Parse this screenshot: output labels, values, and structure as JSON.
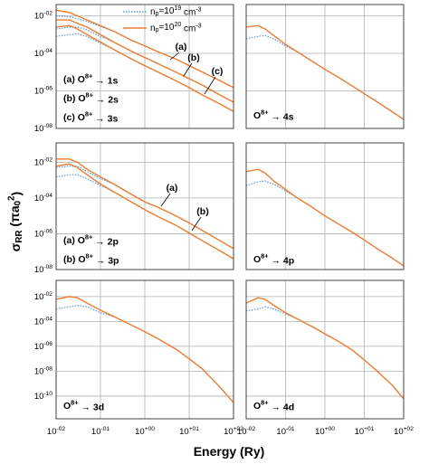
{
  "figure": {
    "x_label": "Energy (Ry)",
    "y_label": "σRR (πa02)"
  },
  "chart_data": [
    {
      "type": "line",
      "xscale": "log",
      "yscale": "log",
      "grid": true,
      "legend": "top",
      "xlim": [
        0.01,
        100
      ],
      "ylim": [
        1e-08,
        0.04
      ],
      "xticks": [
        0.01,
        0.1,
        1,
        10,
        100
      ],
      "yticks": [
        {
          "value": 0.01,
          "label": "10-02"
        },
        {
          "value": 0.0001,
          "label": "10-04"
        },
        {
          "value": 1e-06,
          "label": "10-06"
        },
        {
          "value": 1e-08,
          "label": "10-08"
        }
      ],
      "x": [
        0.01,
        0.02,
        0.03,
        0.05,
        0.1,
        0.2,
        0.5,
        1,
        2,
        5,
        10,
        20,
        50,
        100
      ],
      "series": [
        {
          "name": "np=1019 cm-3",
          "color": "#5b9bd5",
          "line_style": "dotted",
          "values": [
            0.01,
            0.009,
            0.007,
            0.005,
            0.0027,
            0.0015,
            0.0005,
            0.00025,
            0.00012,
            5e-05,
            2.2e-05,
            1e-05,
            3.5e-06,
            1.5e-06
          ]
        },
        {
          "name": "np=1020 cm-3",
          "color": "#ed7d31",
          "line_style": "solid",
          "values": [
            0.02,
            0.015,
            0.01,
            0.006,
            0.003,
            0.0015,
            0.0005,
            0.00025,
            0.00012,
            5e-05,
            2.2e-05,
            1e-05,
            3.5e-06,
            1.5e-06
          ]
        },
        {
          "color": "#5b9bd5",
          "line_style": "dotted",
          "values": [
            0.002,
            0.0025,
            0.0025,
            0.0018,
            0.0008,
            0.0004,
            0.00013,
            6e-05,
            2.8e-05,
            1e-05,
            4.5e-06,
            2e-06,
            6e-07,
            2.5e-07
          ]
        },
        {
          "color": "#ed7d31",
          "line_style": "solid",
          "values": [
            0.006,
            0.006,
            0.004,
            0.0025,
            0.001,
            0.0004,
            0.00013,
            6e-05,
            2.8e-05,
            1e-05,
            4.5e-06,
            2e-06,
            6e-07,
            2.5e-07
          ]
        },
        {
          "color": "#5b9bd5",
          "line_style": "dotted",
          "values": [
            0.0008,
            0.001,
            0.0011,
            0.0008,
            0.00035,
            0.00016,
            5e-05,
            2.2e-05,
            1e-05,
            3.5e-06,
            1.5e-06,
            6e-07,
            2e-07,
            8e-08
          ]
        },
        {
          "color": "#ed7d31",
          "line_style": "solid",
          "values": [
            0.0025,
            0.003,
            0.002,
            0.001,
            0.0004,
            0.00016,
            5e-05,
            2.2e-05,
            1e-05,
            3.5e-06,
            1.5e-06,
            6e-07,
            2e-07,
            8e-08
          ]
        }
      ],
      "annotations": [
        "(a) O8+ → 1s",
        "(b) O8+ → 2s",
        "(c) O8+ → 3s"
      ],
      "curve_labels": [
        "(a)",
        "(b)",
        "(c)"
      ]
    },
    {
      "type": "line",
      "xscale": "log",
      "yscale": "log",
      "grid": true,
      "xlim": [
        0.01,
        100
      ],
      "ylim": [
        1e-08,
        0.04
      ],
      "xticks": [
        0.01,
        0.1,
        1,
        10,
        100
      ],
      "yticks": [
        0.01,
        0.0001,
        1e-06,
        1e-08
      ],
      "x": [
        0.01,
        0.02,
        0.03,
        0.05,
        0.1,
        0.2,
        0.5,
        1,
        2,
        5,
        10,
        20,
        50,
        100
      ],
      "series": [
        {
          "color": "#5b9bd5",
          "line_style": "dotted",
          "values": [
            0.0006,
            0.0008,
            0.0009,
            0.0006,
            0.00025,
            0.00012,
            3.5e-05,
            1.4e-05,
            6e-06,
            1.8e-06,
            7e-07,
            2.8e-07,
            8e-08,
            3e-08
          ]
        },
        {
          "color": "#ed7d31",
          "line_style": "solid",
          "values": [
            0.0025,
            0.003,
            0.002,
            0.0009,
            0.0003,
            0.00012,
            3.5e-05,
            1.4e-05,
            6e-06,
            1.8e-06,
            7e-07,
            2.8e-07,
            8e-08,
            3e-08
          ]
        }
      ],
      "annotations": [
        "O8+ → 4s"
      ]
    },
    {
      "type": "line",
      "xscale": "log",
      "yscale": "log",
      "grid": true,
      "xlim": [
        0.01,
        100
      ],
      "ylim": [
        1e-08,
        0.12
      ],
      "xticks": [
        0.01,
        0.1,
        1,
        10,
        100
      ],
      "yticks": [
        {
          "value": 0.01,
          "label": "10-02"
        },
        {
          "value": 0.0001,
          "label": "10-04"
        },
        {
          "value": 1e-06,
          "label": "10-06"
        },
        {
          "value": 1e-08,
          "label": "10-08"
        }
      ],
      "x": [
        0.01,
        0.02,
        0.03,
        0.05,
        0.1,
        0.2,
        0.5,
        1,
        2,
        5,
        10,
        20,
        50,
        100
      ],
      "series": [
        {
          "color": "#5b9bd5",
          "line_style": "dotted",
          "values": [
            0.005,
            0.006,
            0.006,
            0.003,
            0.0012,
            0.0006,
            0.00016,
            6e-05,
            3e-05,
            1e-05,
            4e-06,
            1.5e-06,
            4e-07,
            1.5e-07
          ]
        },
        {
          "color": "#ed7d31",
          "line_style": "solid",
          "values": [
            0.015,
            0.015,
            0.01,
            0.004,
            0.0015,
            0.0006,
            0.00016,
            6e-05,
            3e-05,
            1e-05,
            4e-06,
            1.5e-06,
            4e-07,
            1.5e-07
          ]
        },
        {
          "color": "#5b9bd5",
          "line_style": "dotted",
          "values": [
            0.0015,
            0.002,
            0.002,
            0.0012,
            0.0005,
            0.00022,
            6e-05,
            2.2e-05,
            9e-06,
            3e-06,
            1.1e-06,
            4e-07,
            1.1e-07,
            4e-08
          ]
        },
        {
          "color": "#ed7d31",
          "line_style": "solid",
          "values": [
            0.006,
            0.008,
            0.005,
            0.002,
            0.0006,
            0.00022,
            6e-05,
            2.2e-05,
            9e-06,
            3e-06,
            1.1e-06,
            4e-07,
            1.1e-07,
            4e-08
          ]
        }
      ],
      "annotations": [
        "(a) O8+ → 2p",
        "(b) O8+ → 3p"
      ],
      "curve_labels": [
        "(a)",
        "(b)"
      ]
    },
    {
      "type": "line",
      "xscale": "log",
      "yscale": "log",
      "grid": true,
      "xlim": [
        0.01,
        100
      ],
      "ylim": [
        1e-08,
        0.12
      ],
      "xticks": [
        0.01,
        0.1,
        1,
        10,
        100
      ],
      "yticks": [
        0.01,
        0.0001,
        1e-06,
        1e-08
      ],
      "x": [
        0.01,
        0.02,
        0.03,
        0.05,
        0.1,
        0.2,
        0.5,
        1,
        2,
        5,
        10,
        20,
        50,
        100
      ],
      "series": [
        {
          "color": "#5b9bd5",
          "line_style": "dotted",
          "values": [
            0.0005,
            0.0008,
            0.0009,
            0.0006,
            0.00025,
            0.0001,
            2.8e-05,
            1e-05,
            4e-06,
            1.2e-06,
            4.5e-07,
            1.6e-07,
            4.5e-08,
            1.6e-08
          ]
        },
        {
          "color": "#ed7d31",
          "line_style": "solid",
          "values": [
            0.003,
            0.004,
            0.0025,
            0.0009,
            0.0003,
            0.0001,
            2.8e-05,
            1e-05,
            4e-06,
            1.2e-06,
            4.5e-07,
            1.6e-07,
            4.5e-08,
            1.6e-08
          ]
        }
      ],
      "annotations": [
        "O8+ → 4p"
      ]
    },
    {
      "type": "line",
      "xscale": "log",
      "yscale": "log",
      "grid": true,
      "xlim": [
        0.01,
        100
      ],
      "ylim": [
        1.5e-12,
        0.2
      ],
      "xticks": [
        {
          "value": 0.01,
          "label": "10-02"
        },
        {
          "value": 0.1,
          "label": "10-01"
        },
        {
          "value": 1,
          "label": "10+00"
        },
        {
          "value": 10,
          "label": "10+01"
        },
        {
          "value": 100,
          "label": "10+02"
        }
      ],
      "yticks": [
        {
          "value": 0.01,
          "label": "10-02"
        },
        {
          "value": 0.0001,
          "label": "10-04"
        },
        {
          "value": 1e-06,
          "label": "10-06"
        },
        {
          "value": 1e-08,
          "label": "10-08"
        },
        {
          "value": 1e-10,
          "label": "10-10"
        }
      ],
      "x": [
        0.01,
        0.02,
        0.03,
        0.05,
        0.1,
        0.2,
        0.5,
        1,
        2,
        5,
        10,
        20,
        50,
        100
      ],
      "series": [
        {
          "color": "#5b9bd5",
          "line_style": "dotted",
          "values": [
            0.001,
            0.0015,
            0.002,
            0.0015,
            0.0005,
            0.00025,
            5e-05,
            1.5e-05,
            4e-06,
            6e-07,
            1e-07,
            1.5e-08,
            5e-10,
            3e-11
          ]
        },
        {
          "color": "#ed7d31",
          "line_style": "solid",
          "values": [
            0.006,
            0.01,
            0.008,
            0.003,
            0.0008,
            0.00025,
            5e-05,
            1.5e-05,
            4e-06,
            6e-07,
            1e-07,
            1.5e-08,
            5e-10,
            3e-11
          ]
        }
      ],
      "annotations": [
        "O8+ → 3d"
      ]
    },
    {
      "type": "line",
      "xscale": "log",
      "yscale": "log",
      "grid": true,
      "xlim": [
        0.01,
        100
      ],
      "ylim": [
        1.5e-12,
        0.2
      ],
      "xticks": [
        {
          "value": 0.01,
          "label": "10-02"
        },
        {
          "value": 0.1,
          "label": "10-01"
        },
        {
          "value": 1,
          "label": "10+00"
        },
        {
          "value": 10,
          "label": "10+01"
        },
        {
          "value": 100,
          "label": "10+02"
        }
      ],
      "yticks": [
        0.01,
        0.0001,
        1e-06,
        1e-08,
        1e-10
      ],
      "x": [
        0.01,
        0.02,
        0.03,
        0.05,
        0.1,
        0.2,
        0.5,
        1,
        2,
        5,
        10,
        20,
        50,
        100
      ],
      "series": [
        {
          "color": "#5b9bd5",
          "line_style": "dotted",
          "values": [
            0.0007,
            0.001,
            0.0015,
            0.001,
            0.0004,
            0.00016,
            3.5e-05,
            1e-05,
            3e-06,
            5e-07,
            8e-08,
            1.2e-08,
            8e-10,
            6e-11
          ]
        },
        {
          "color": "#ed7d31",
          "line_style": "solid",
          "values": [
            0.003,
            0.008,
            0.006,
            0.002,
            0.0005,
            0.00016,
            3.5e-05,
            1e-05,
            3e-06,
            5e-07,
            8e-08,
            1.2e-08,
            8e-10,
            6e-11
          ]
        }
      ],
      "annotations": [
        "O8+ → 4d"
      ]
    }
  ]
}
